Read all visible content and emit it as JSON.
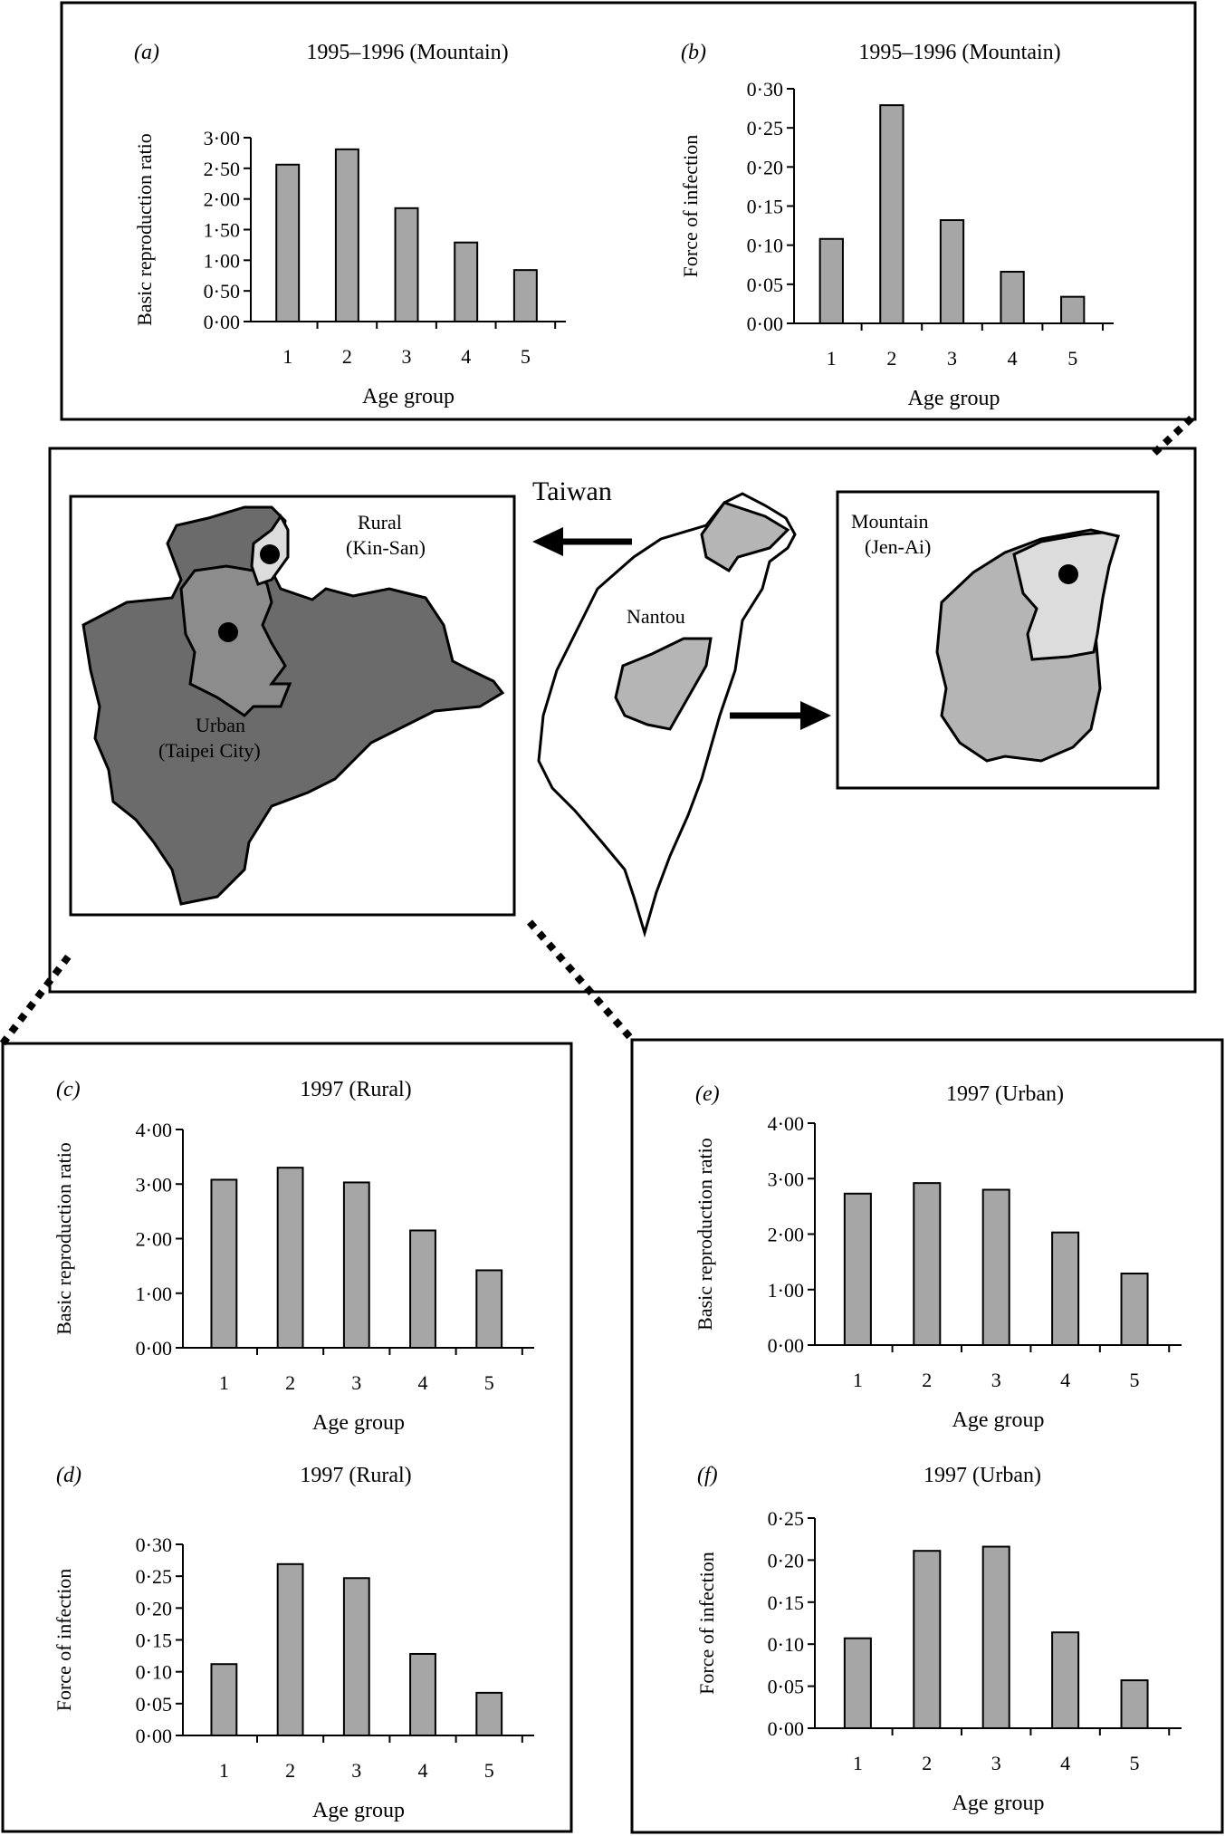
{
  "map": {
    "title": "Taiwan",
    "rural_label": "Rural",
    "rural_sub": "(Kin-San)",
    "urban_label": "Urban",
    "urban_sub": "(Taipei City)",
    "nantou_label": "Nantou",
    "mountain_label": "Mountain",
    "mountain_sub": "(Jen-Ai)",
    "colors": {
      "dark": "#6b6b6b",
      "mid": "#8c8c8c",
      "light": "#b5b5b5",
      "pale": "#dcdcdc"
    }
  },
  "chart_data": [
    {
      "id": "a",
      "panel_label": "(a)",
      "type": "bar",
      "title": "1995–1996 (Mountain)",
      "xlabel": "Age group",
      "ylabel": "Basic reproduction ratio",
      "categories": [
        "1",
        "2",
        "3",
        "4",
        "5"
      ],
      "values": [
        2.56,
        2.81,
        1.85,
        1.29,
        0.84
      ],
      "ylim": [
        0,
        3.0
      ],
      "yticks": [
        "0·00",
        "0·50",
        "1·00",
        "1·50",
        "2·00",
        "2·50",
        "3·00"
      ]
    },
    {
      "id": "b",
      "panel_label": "(b)",
      "type": "bar",
      "title": "1995–1996 (Mountain)",
      "xlabel": "Age group",
      "ylabel": "Force of infection",
      "categories": [
        "1",
        "2",
        "3",
        "4",
        "5"
      ],
      "values": [
        0.108,
        0.279,
        0.132,
        0.066,
        0.034
      ],
      "ylim": [
        0,
        0.3
      ],
      "yticks": [
        "0·00",
        "0·05",
        "0·10",
        "0·15",
        "0·20",
        "0·25",
        "0·30"
      ]
    },
    {
      "id": "c",
      "panel_label": "(c)",
      "type": "bar",
      "title": "1997 (Rural)",
      "xlabel": "Age group",
      "ylabel": "Basic reproduction ratio",
      "categories": [
        "1",
        "2",
        "3",
        "4",
        "5"
      ],
      "values": [
        3.08,
        3.3,
        3.03,
        2.15,
        1.42
      ],
      "ylim": [
        0,
        4.0
      ],
      "yticks": [
        "0·00",
        "1·00",
        "2·00",
        "3·00",
        "4·00"
      ]
    },
    {
      "id": "d",
      "panel_label": "(d)",
      "type": "bar",
      "title": "1997 (Rural)",
      "xlabel": "Age group",
      "ylabel": "Force of infection",
      "categories": [
        "1",
        "2",
        "3",
        "4",
        "5"
      ],
      "values": [
        0.112,
        0.269,
        0.247,
        0.128,
        0.067
      ],
      "ylim": [
        0,
        0.3
      ],
      "yticks": [
        "0·00",
        "0·05",
        "0·10",
        "0·15",
        "0·20",
        "0·25",
        "0·30"
      ]
    },
    {
      "id": "e",
      "panel_label": "(e)",
      "type": "bar",
      "title": "1997 (Urban)",
      "xlabel": "Age group",
      "ylabel": "Basic reproduction ratio",
      "categories": [
        "1",
        "2",
        "3",
        "4",
        "5"
      ],
      "values": [
        2.73,
        2.92,
        2.8,
        2.03,
        1.29
      ],
      "ylim": [
        0,
        4.0
      ],
      "yticks": [
        "0·00",
        "1·00",
        "2·00",
        "3·00",
        "4·00"
      ]
    },
    {
      "id": "f",
      "panel_label": "(f)",
      "type": "bar",
      "title": "1997 (Urban)",
      "xlabel": "Age group",
      "ylabel": "Force of infection",
      "categories": [
        "1",
        "2",
        "3",
        "4",
        "5"
      ],
      "values": [
        0.107,
        0.211,
        0.216,
        0.114,
        0.057
      ],
      "ylim": [
        0,
        0.25
      ],
      "yticks": [
        "0·00",
        "0·05",
        "0·10",
        "0·15",
        "0·20",
        "0·25"
      ]
    }
  ]
}
